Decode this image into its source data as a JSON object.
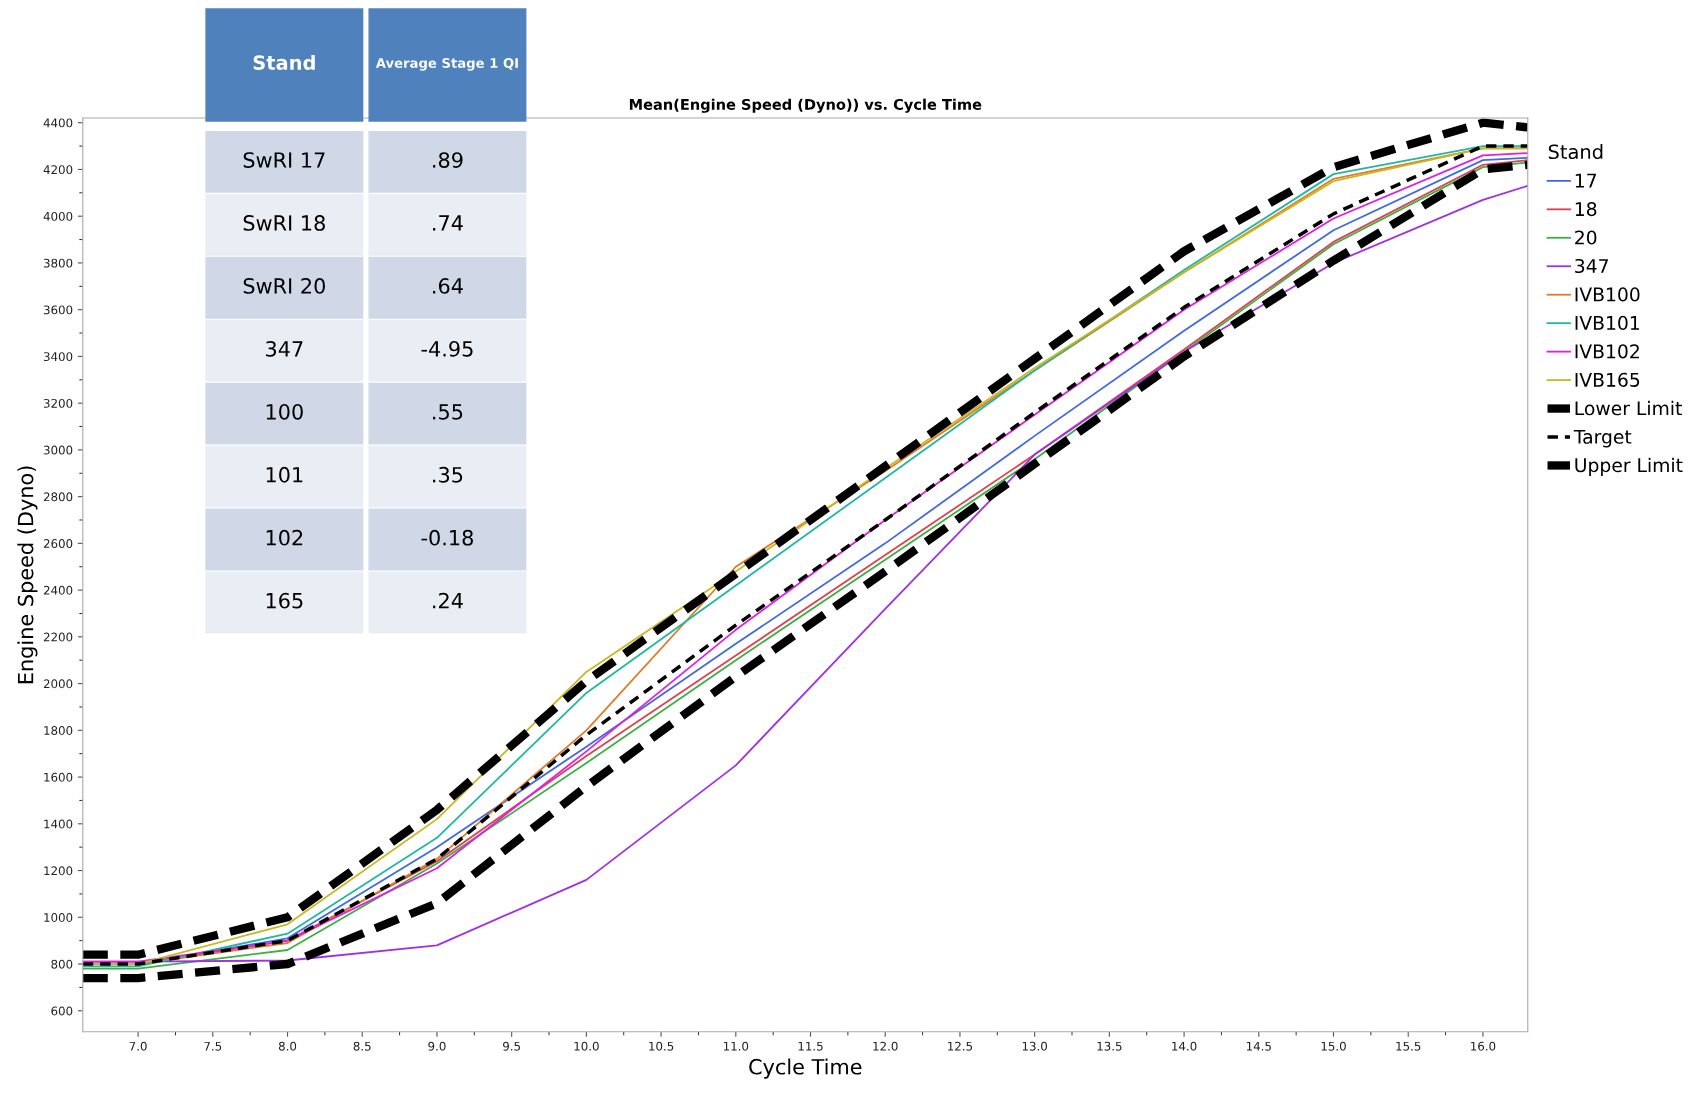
{
  "chart_data": [
    {
      "type": "line",
      "title": "Mean(Engine Speed (Dyno)) vs. Cycle Time",
      "xlabel": "Cycle Time",
      "ylabel": "Engine Speed (Dyno)",
      "legend_title": "Stand",
      "legend": "right",
      "x": [
        6.63,
        7,
        8,
        9,
        10,
        11,
        12,
        13,
        14,
        15,
        16,
        16.3
      ],
      "series": [
        {
          "name": "17",
          "color": "#4169e1",
          "values": [
            800,
            800,
            910,
            1300,
            1730,
            2170,
            2600,
            3060,
            3510,
            3940,
            4240,
            4250
          ]
        },
        {
          "name": "18",
          "color": "#e04050",
          "values": [
            800,
            800,
            900,
            1240,
            1690,
            2120,
            2550,
            2980,
            3430,
            3890,
            4220,
            4240
          ]
        },
        {
          "name": "20",
          "color": "#3cb043",
          "values": [
            780,
            780,
            860,
            1230,
            1660,
            2100,
            2530,
            2960,
            3420,
            3880,
            4210,
            4230
          ]
        },
        {
          "name": "347",
          "color": "#a030e8",
          "values": [
            810,
            810,
            815,
            880,
            1160,
            1650,
            2320,
            2980,
            3420,
            3800,
            4070,
            4130
          ]
        },
        {
          "name": "IVB100",
          "color": "#e07b28",
          "values": [
            800,
            800,
            890,
            1250,
            1800,
            2500,
            2910,
            3340,
            3760,
            4160,
            4290,
            4290
          ]
        },
        {
          "name": "IVB101",
          "color": "#20b8a0",
          "values": [
            790,
            790,
            930,
            1340,
            1960,
            2420,
            2880,
            3340,
            3770,
            4180,
            4300,
            4300
          ]
        },
        {
          "name": "IVB102",
          "color": "#e020e0",
          "values": [
            810,
            810,
            900,
            1210,
            1710,
            2230,
            2700,
            3150,
            3600,
            3990,
            4260,
            4270
          ]
        },
        {
          "name": "IVB165",
          "color": "#c8b820",
          "values": [
            800,
            800,
            970,
            1420,
            2050,
            2480,
            2920,
            3350,
            3760,
            4150,
            4290,
            4290
          ]
        },
        {
          "name": "Lower Limit",
          "color": "#000000",
          "line_style": "dashed",
          "values": [
            740,
            740,
            800,
            1060,
            1560,
            2030,
            2480,
            2940,
            3400,
            3810,
            4200,
            4220
          ]
        },
        {
          "name": "Target",
          "color": "#000000",
          "line_style": "dotted",
          "values": [
            800,
            800,
            900,
            1250,
            1780,
            2250,
            2700,
            3160,
            3610,
            4010,
            4300,
            4300
          ]
        },
        {
          "name": "Upper Limit",
          "color": "#000000",
          "line_style": "dashed",
          "values": [
            840,
            840,
            1000,
            1460,
            2010,
            2470,
            2930,
            3390,
            3850,
            4210,
            4400,
            4380
          ]
        }
      ],
      "xlim": [
        6.63,
        16.3
      ],
      "ylim": [
        510,
        4420
      ],
      "xticks": [
        {
          "value": 7,
          "label": "7.0"
        },
        {
          "value": 7.5,
          "label": "7.5"
        },
        {
          "value": 8,
          "label": "8.0"
        },
        {
          "value": 8.5,
          "label": "8.5"
        },
        {
          "value": 9,
          "label": "9.0"
        },
        {
          "value": 9.5,
          "label": "9.5"
        },
        {
          "value": 10,
          "label": "10.0"
        },
        {
          "value": 10.5,
          "label": "10.5"
        },
        {
          "value": 11,
          "label": "11.0"
        },
        {
          "value": 11.5,
          "label": "11.5"
        },
        {
          "value": 12,
          "label": "12.0"
        },
        {
          "value": 12.5,
          "label": "12.5"
        },
        {
          "value": 13,
          "label": "13.0"
        },
        {
          "value": 13.5,
          "label": "13.5"
        },
        {
          "value": 14,
          "label": "14.0"
        },
        {
          "value": 14.5,
          "label": "14.5"
        },
        {
          "value": 15,
          "label": "15.0"
        },
        {
          "value": 15.5,
          "label": "15.5"
        },
        {
          "value": 16,
          "label": "16.0"
        }
      ],
      "yticks": [
        600,
        800,
        1000,
        1200,
        1400,
        1600,
        1800,
        2000,
        2200,
        2400,
        2600,
        2800,
        3000,
        3200,
        3400,
        3600,
        3800,
        4000,
        4200,
        4400
      ],
      "grid": false,
      "marker": "none"
    },
    {
      "type": "other",
      "xlabel": "Stand",
      "ylabel": "Average Stage 1 QI",
      "categories": [
        "SwRI 17",
        "SwRI 18",
        "SwRI 20",
        "347",
        "100",
        "101",
        "102",
        "165"
      ],
      "value_labels": [
        ".89",
        ".74",
        ".64",
        "-4.95",
        ".55",
        ".35",
        "-0.18",
        ".24"
      ]
    }
  ]
}
